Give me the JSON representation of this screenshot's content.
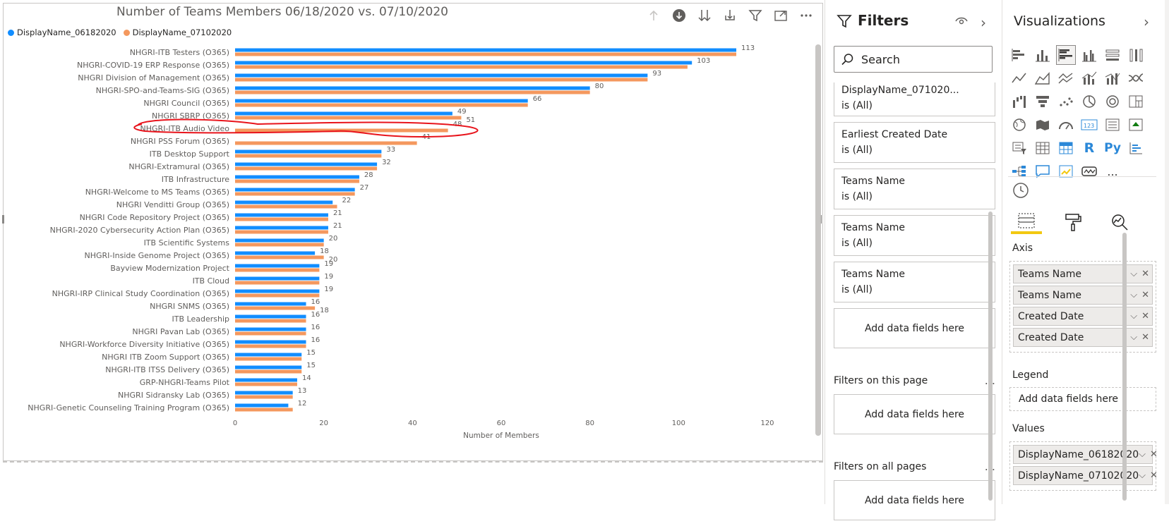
{
  "chart": {
    "title": "Number of Teams Members 06/18/2020 vs. 07/10/2020",
    "legend": [
      {
        "label": "DisplayName_06182020",
        "color": "#118dff"
      },
      {
        "label": "DisplayName_07102020",
        "color": "#f4985e"
      }
    ],
    "header_icons": [
      "drill-up-icon",
      "drill-down-icon",
      "expand-all-icon",
      "expand-hierarchy-icon",
      "filter-icon",
      "focus-mode-icon",
      "more-options-icon"
    ]
  },
  "chart_data": {
    "type": "bar",
    "orientation": "horizontal",
    "title": "Number of Teams Members 06/18/2020 vs. 07/10/2020",
    "xlabel": "Number of Members",
    "ylabel": "",
    "xlim": [
      0,
      120
    ],
    "xticks": [
      0,
      20,
      40,
      60,
      80,
      100,
      120
    ],
    "legend_position": "top-left",
    "grid": false,
    "categories": [
      "NHGRI-ITB Testers (O365)",
      "NHGRI-COVID-19 ERP Response (O365)",
      "NHGRI Division of Management (O365)",
      "NHGRI-SPO-and-Teams-SIG (O365)",
      "NHGRI Council (O365)",
      "NHGRI SBRP (O365)",
      "NHGRI-ITB Audio Video",
      "NHGRI PSS Forum (O365)",
      "ITB Desktop Support",
      "NHGRI-Extramural (O365)",
      "ITB Infrastructure",
      "NHGRI-Welcome to MS Teams (O365)",
      "NHGRI Venditti Group (O365)",
      "NHGRI Code Repository Project (O365)",
      "NHGRI-2020 Cybersecurity Action Plan (O365)",
      "ITB Scientific Systems",
      "NHGRI-Inside Genome Project (O365)",
      "Bayview Modernization Project",
      "ITB Cloud",
      "NHGRI-IRP Clinical Study Coordination (O365)",
      "NHGRI SNMS (O365)",
      "ITB Leadership",
      "NHGRI Pavan Lab (O365)",
      "NHGRI-Workforce Diversity Initiative (O365)",
      "NHGRI ITB Zoom Support (O365)",
      "NHGRI-ITB ITSS Delivery (O365)",
      "GRP-NHGRI-Teams Pilot",
      "NHGRI Sidransky Lab (O365)",
      "NHGRI-Genetic Counseling Training Program (O365)"
    ],
    "series": [
      {
        "name": "DisplayName_06182020",
        "color": "#118dff",
        "values": [
          113,
          103,
          93,
          80,
          66,
          49,
          null,
          null,
          33,
          32,
          28,
          27,
          22,
          21,
          21,
          20,
          18,
          19,
          19,
          19,
          16,
          16,
          16,
          16,
          15,
          15,
          14,
          13,
          12
        ]
      },
      {
        "name": "DisplayName_07102020",
        "color": "#f4985e",
        "values": [
          113,
          102,
          93,
          80,
          66,
          51,
          48,
          41,
          33,
          32,
          28,
          27,
          23,
          21,
          21,
          20,
          20,
          19,
          19,
          19,
          18,
          16,
          16,
          16,
          15,
          15,
          14,
          13,
          13
        ]
      }
    ],
    "data_labels": [
      [
        "113"
      ],
      [
        "103"
      ],
      [
        "93"
      ],
      [
        "80"
      ],
      [
        "66"
      ],
      [
        "49",
        "51"
      ],
      [
        "48"
      ],
      [
        "41"
      ],
      [
        "33"
      ],
      [
        "32"
      ],
      [
        "28"
      ],
      [
        "27"
      ],
      [
        "22"
      ],
      [
        "21"
      ],
      [
        "21"
      ],
      [
        "20"
      ],
      [
        "18",
        "20"
      ],
      [
        "19"
      ],
      [
        "19"
      ],
      [
        "19"
      ],
      [
        "16",
        "18"
      ],
      [
        "16"
      ],
      [
        "16"
      ],
      [
        "16"
      ],
      [
        "15"
      ],
      [
        "15"
      ],
      [
        "14"
      ],
      [
        "13"
      ],
      [
        "12"
      ]
    ],
    "annotation": {
      "type": "freehand-ellipse",
      "color": "#e8141c",
      "target": "NHGRI-ITB Audio Video"
    }
  },
  "filters": {
    "title": "Filters",
    "search_placeholder": "Search",
    "cards": [
      {
        "name": "DisplayName_071020...",
        "condition": "is (All)"
      },
      {
        "name": "Earliest Created Date",
        "condition": "is (All)"
      },
      {
        "name": "Teams Name",
        "condition": "is (All)"
      },
      {
        "name": "Teams Name",
        "condition": "is (All)"
      },
      {
        "name": "Teams Name",
        "condition": "is (All)"
      }
    ],
    "add_fields_label": "Add data fields here",
    "on_this_page": "Filters on this page",
    "on_all_pages": "Filters on all pages",
    "more": "..."
  },
  "visualizations": {
    "title": "Visualizations",
    "icons": [
      "stacked-bar-icon",
      "stacked-column-icon",
      "clustered-bar-icon",
      "clustered-column-icon",
      "100-stacked-bar-icon",
      "100-stacked-column-icon",
      "line-chart-icon",
      "area-chart-icon",
      "stacked-area-icon",
      "line-column-icon",
      "line-stacked-column-icon",
      "ribbon-chart-icon",
      "waterfall-icon",
      "funnel-icon",
      "scatter-icon",
      "pie-chart-icon",
      "donut-chart-icon",
      "treemap-icon",
      "map-icon",
      "filled-map-icon",
      "gauge-icon",
      "card-icon",
      "multi-row-card-icon",
      "kpi-icon",
      "slicer-icon",
      "table-icon",
      "matrix-icon",
      "r-visual-icon",
      "python-visual-icon",
      "key-influencers-icon",
      "decomposition-tree-icon",
      "qa-icon",
      "smart-narrative-icon",
      "paginated-report-icon",
      "more-visuals-icon"
    ],
    "r_label": "R",
    "py_label": "Py",
    "card_label": "123",
    "more_label": "...",
    "axis_label": "Axis",
    "axis_fields": [
      "Teams Name",
      "Teams Name",
      "Created Date",
      "Created Date"
    ],
    "legend_label": "Legend",
    "legend_add": "Add data fields here",
    "values_label": "Values",
    "value_fields": [
      "DisplayName_06182020",
      "DisplayName_07102020"
    ]
  }
}
